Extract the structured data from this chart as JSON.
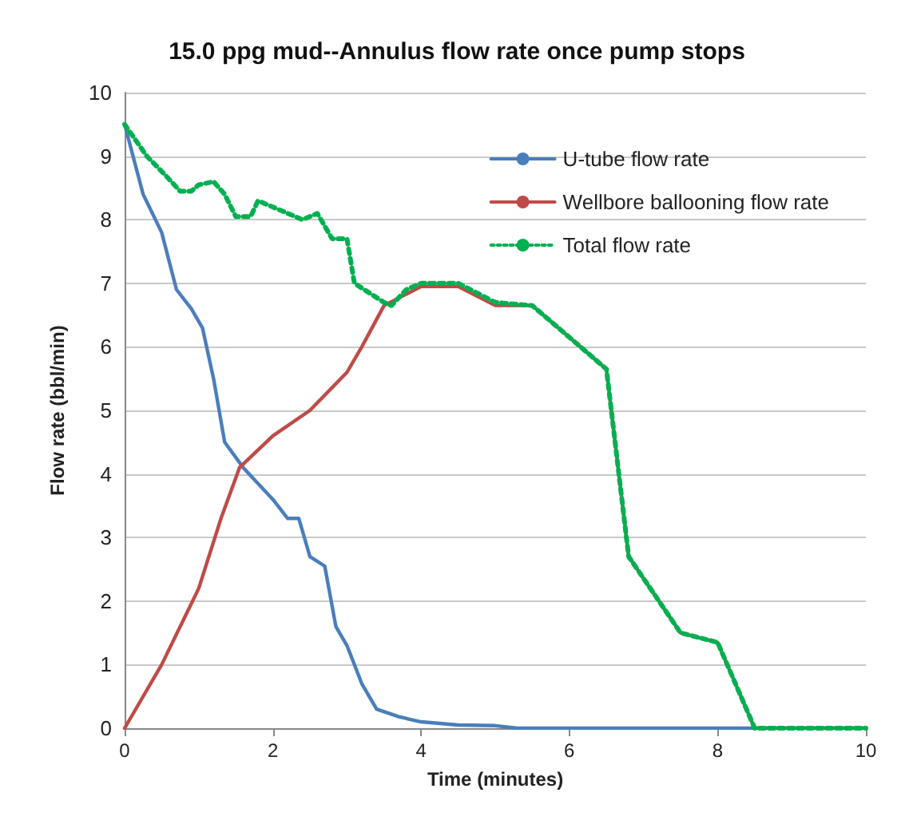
{
  "chart_data": {
    "type": "line",
    "title": "15.0 ppg mud--Annulus flow rate once pump stops",
    "xlabel": "Time (minutes)",
    "ylabel": "Flow rate (bbl/min)",
    "xlim": [
      0,
      10
    ],
    "xticks": [
      0,
      2,
      4,
      6,
      8,
      10
    ],
    "ylim": [
      0,
      10
    ],
    "yticks": [
      0,
      1,
      2,
      3,
      4,
      5,
      6,
      7,
      8,
      9,
      10
    ],
    "grid": "y",
    "legend": "top right",
    "marker": "none",
    "series": [
      {
        "name": "U-tube flow rate",
        "color": "#4a7ebb",
        "line_style": "solid",
        "x": [
          0,
          0.25,
          0.5,
          0.7,
          0.9,
          1.05,
          1.2,
          1.35,
          1.6,
          2.0,
          2.2,
          2.35,
          2.5,
          2.7,
          2.85,
          3.0,
          3.2,
          3.4,
          3.7,
          4.0,
          4.5,
          5.0,
          5.3,
          10
        ],
        "values": [
          9.5,
          8.4,
          7.8,
          6.9,
          6.6,
          6.3,
          5.5,
          4.5,
          4.1,
          3.6,
          3.3,
          3.3,
          2.7,
          2.55,
          1.6,
          1.3,
          0.7,
          0.3,
          0.18,
          0.1,
          0.05,
          0.04,
          0,
          0
        ]
      },
      {
        "name": "Wellbore ballooning flow rate",
        "color": "#be4b48",
        "line_style": "solid",
        "x": [
          0,
          0.5,
          1.0,
          1.3,
          1.55,
          2.0,
          2.5,
          3.0,
          3.2,
          3.5,
          4.0,
          4.5,
          5.0,
          5.5,
          6.5,
          6.8,
          7.5,
          8.0,
          8.5,
          10
        ],
        "values": [
          0,
          1.0,
          2.2,
          3.3,
          4.1,
          4.6,
          5.0,
          5.6,
          6.0,
          6.65,
          6.95,
          6.95,
          6.65,
          6.65,
          5.65,
          2.7,
          1.5,
          1.35,
          0,
          0
        ]
      },
      {
        "name": "Total flow rate",
        "color": "#00b050",
        "line_style": "dotted",
        "x": [
          0,
          0.3,
          0.55,
          0.75,
          0.9,
          1.0,
          1.2,
          1.35,
          1.5,
          1.7,
          1.8,
          2.0,
          2.4,
          2.6,
          2.8,
          3.0,
          3.1,
          3.5,
          3.6,
          3.8,
          4.0,
          4.5,
          5.0,
          5.5,
          6.5,
          6.8,
          7.5,
          8.0,
          8.5,
          10
        ],
        "values": [
          9.5,
          9.0,
          8.7,
          8.45,
          8.45,
          8.55,
          8.6,
          8.4,
          8.05,
          8.05,
          8.3,
          8.2,
          8.0,
          8.1,
          7.7,
          7.7,
          7.0,
          6.7,
          6.65,
          6.9,
          7.0,
          7.0,
          6.7,
          6.65,
          5.65,
          2.7,
          1.5,
          1.35,
          0,
          0
        ]
      }
    ]
  }
}
